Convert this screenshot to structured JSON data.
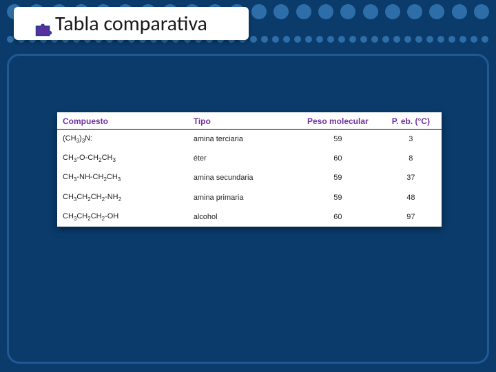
{
  "title": "Tabla comparativa",
  "table": {
    "type": "table",
    "columns": [
      {
        "label": "Compuesto",
        "align": "left"
      },
      {
        "label": "Tipo",
        "align": "left"
      },
      {
        "label": "Peso molecular",
        "align": "center"
      },
      {
        "label": "P. eb. (°C)",
        "align": "center"
      }
    ],
    "header_color": "#7030a0",
    "header_fontsize": 12,
    "row_fontsize": 11,
    "background_color": "#ffffff",
    "border_color": "#000000",
    "rows": [
      {
        "compound_html": "(CH<sub>3</sub>)<sub>3</sub>N:",
        "type": "amina terciaria",
        "molwt": "59",
        "bp": "3"
      },
      {
        "compound_html": "CH<sub>3</sub>-O-CH<sub>2</sub>CH<sub>3</sub>",
        "type": "éter",
        "molwt": "60",
        "bp": "8"
      },
      {
        "compound_html": "CH<sub>3</sub>-NH-CH<sub>2</sub>CH<sub>3</sub>",
        "type": "amina secundaria",
        "molwt": "59",
        "bp": "37"
      },
      {
        "compound_html": "CH<sub>3</sub>CH<sub>2</sub>CH<sub>2</sub>-NH<sub>2</sub>",
        "type": "amina primaria",
        "molwt": "59",
        "bp": "48"
      },
      {
        "compound_html": "CH<sub>3</sub>CH<sub>2</sub>CH<sub>2</sub>-OH",
        "type": "alcohol",
        "molwt": "60",
        "bp": "97"
      }
    ],
    "column_widths": [
      "34%",
      "28%",
      "22%",
      "16%"
    ]
  },
  "colors": {
    "slide_background": "#0a3b6b",
    "dot_color": "#2e6ea8",
    "frame_border": "#1f5a96",
    "title_band_bg": "#ffffff",
    "title_text": "#1a1a1a"
  }
}
